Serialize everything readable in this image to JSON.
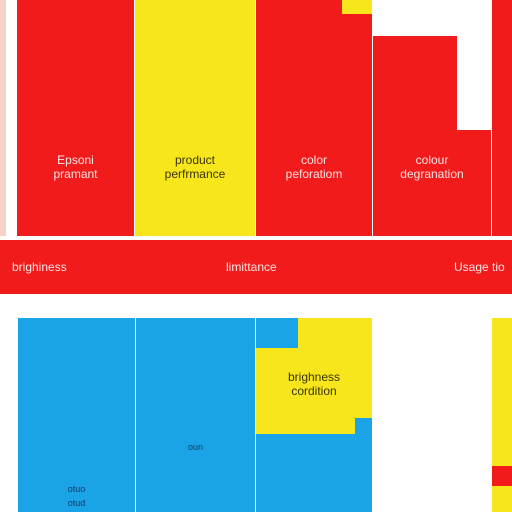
{
  "top_row": {
    "block1": {
      "line1": "Epsoni",
      "line2": "pramant"
    },
    "block2": {
      "line1": "product",
      "line2": "perfrmance"
    },
    "block3": {
      "line1": "color",
      "line2": "peforatiom"
    },
    "block4": {
      "line1": "colour",
      "line2": "degranation"
    }
  },
  "band": {
    "left": "brighiness",
    "center": "limittance",
    "right": "Usage tio"
  },
  "bottom_row": {
    "yellow_block": {
      "line1": "brighness",
      "line2": "cordition"
    },
    "blue_label_mid": "oun",
    "blue_label_left1": "otuo",
    "blue_label_left2": "otud"
  },
  "colors": {
    "red": "#f21b1b",
    "yellow": "#f7e61c",
    "blue": "#1aa3e6",
    "white": "#ffffff"
  }
}
